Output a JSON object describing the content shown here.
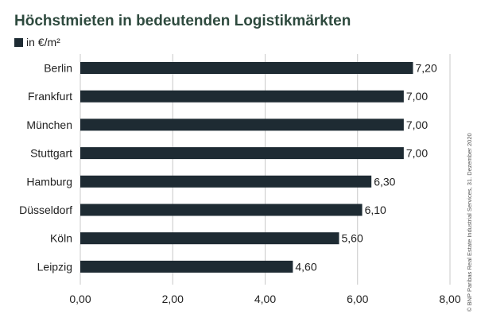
{
  "title": "Höchstmieten in bedeutenden Logistikmärkten",
  "legend_label": "in €/m²",
  "credit": "© BNP Paribas Real Estate Industrial Services, 31. Dezember 2020",
  "colors": {
    "bar": "#1e2b33",
    "title": "#2e4a3e",
    "grid": "#c9c9c9"
  },
  "chart_data": {
    "type": "bar",
    "orientation": "horizontal",
    "categories": [
      "Berlin",
      "Frankfurt",
      "München",
      "Stuttgart",
      "Hamburg",
      "Düsseldorf",
      "Köln",
      "Leipzig"
    ],
    "values": [
      7.2,
      7.0,
      7.0,
      7.0,
      6.3,
      6.1,
      5.6,
      4.6
    ],
    "value_labels": [
      "7,20",
      "7,00",
      "7,00",
      "7,00",
      "6,30",
      "6,10",
      "5,60",
      "4,60"
    ],
    "xlim": [
      0,
      8
    ],
    "xticks": [
      0,
      2,
      4,
      6,
      8
    ],
    "xtick_labels": [
      "0,00",
      "2,00",
      "4,00",
      "6,00",
      "8,00"
    ],
    "grid": true,
    "legend_position": "top-left"
  }
}
